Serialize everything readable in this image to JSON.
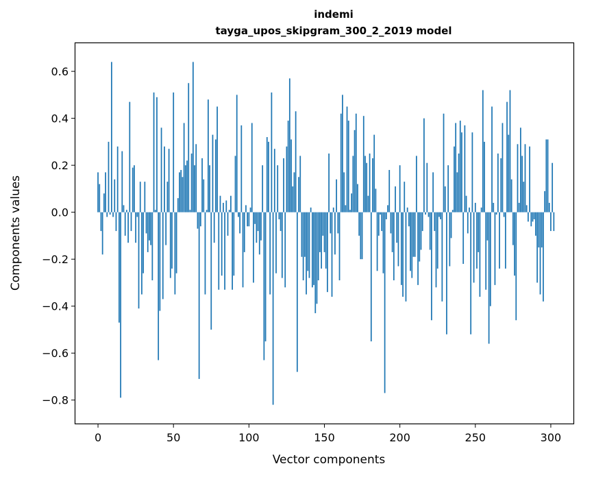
{
  "chart_data": {
    "type": "bar",
    "title": "indemi",
    "subtitle": "tayga_upos_skipgram_300_2_2019 model",
    "xlabel": "Vector components",
    "ylabel": "Components values",
    "xlim": [
      -15,
      315
    ],
    "ylim": [
      -0.9,
      0.72
    ],
    "xticks": [
      0,
      50,
      100,
      150,
      200,
      250,
      300
    ],
    "yticks": [
      -0.8,
      -0.6,
      -0.4,
      -0.2,
      0.0,
      0.2,
      0.4,
      0.6
    ],
    "ytick_labels": [
      "−0.8",
      "−0.6",
      "−0.4",
      "−0.2",
      "0.0",
      "0.2",
      "0.4",
      "0.6"
    ],
    "bar_color": "#1f77b4",
    "grid": false,
    "values": [
      0.17,
      0.12,
      -0.08,
      -0.18,
      0.08,
      0.17,
      -0.02,
      0.3,
      -0.01,
      0.64,
      -0.02,
      0.14,
      -0.08,
      0.28,
      -0.47,
      -0.79,
      0.26,
      0.03,
      -0.1,
      0.01,
      -0.13,
      0.47,
      -0.08,
      0.19,
      0.2,
      -0.13,
      -0.02,
      -0.41,
      0.13,
      -0.35,
      -0.26,
      0.13,
      -0.09,
      -0.17,
      -0.12,
      -0.14,
      -0.29,
      0.51,
      0.01,
      0.49,
      -0.63,
      -0.42,
      0.36,
      -0.37,
      0.28,
      -0.14,
      0.13,
      0.27,
      -0.28,
      -0.24,
      0.51,
      -0.35,
      -0.26,
      0.06,
      0.17,
      0.18,
      0.15,
      0.38,
      0.2,
      0.22,
      0.55,
      0.01,
      0.25,
      0.64,
      0.2,
      0.29,
      -0.07,
      -0.71,
      -0.06,
      0.23,
      0.14,
      -0.35,
      0.01,
      0.48,
      0.2,
      -0.5,
      0.33,
      -0.13,
      0.31,
      0.45,
      -0.33,
      0.07,
      -0.27,
      0.04,
      -0.33,
      0.05,
      -0.1,
      0.01,
      0.07,
      -0.33,
      -0.27,
      0.24,
      0.5,
      -0.02,
      -0.09,
      0.37,
      -0.32,
      -0.17,
      0.03,
      -0.06,
      -0.06,
      0.02,
      0.38,
      -0.3,
      -0.05,
      -0.13,
      -0.08,
      -0.18,
      -0.12,
      0.2,
      -0.63,
      -0.55,
      0.32,
      0.3,
      -0.35,
      0.51,
      -0.82,
      0.27,
      -0.26,
      0.2,
      -0.03,
      -0.08,
      -0.28,
      0.23,
      -0.32,
      0.28,
      0.39,
      0.57,
      0.31,
      0.11,
      0.17,
      0.43,
      -0.68,
      0.15,
      0.24,
      -0.19,
      -0.29,
      -0.19,
      -0.35,
      -0.25,
      -0.28,
      0.02,
      -0.32,
      -0.31,
      -0.43,
      -0.39,
      -0.29,
      -0.17,
      -0.24,
      -0.1,
      -0.17,
      -0.24,
      -0.34,
      0.25,
      -0.09,
      -0.36,
      0.02,
      -0.18,
      0.14,
      -0.09,
      -0.29,
      0.42,
      0.5,
      0.17,
      0.03,
      0.45,
      0.39,
      0.01,
      0.08,
      0.24,
      0.35,
      0.42,
      0.12,
      -0.1,
      -0.2,
      -0.2,
      0.41,
      0.24,
      0.21,
      0.07,
      0.25,
      -0.55,
      0.23,
      0.33,
      0.1,
      -0.25,
      -0.1,
      -0.01,
      -0.08,
      -0.26,
      -0.77,
      -0.03,
      0.03,
      0.18,
      -0.09,
      -0.17,
      -0.29,
      0.11,
      -0.13,
      -0.23,
      0.2,
      -0.31,
      -0.36,
      0.13,
      -0.38,
      0.02,
      -0.06,
      -0.25,
      -0.28,
      -0.19,
      -0.19,
      0.24,
      -0.31,
      -0.21,
      -0.16,
      -0.08,
      0.4,
      -0.01,
      0.21,
      -0.02,
      -0.16,
      -0.46,
      0.17,
      -0.08,
      -0.32,
      -0.24,
      -0.02,
      -0.03,
      -0.38,
      0.42,
      0.11,
      -0.52,
      0.2,
      -0.23,
      -0.11,
      0.01,
      0.28,
      0.38,
      0.17,
      0.25,
      0.39,
      0.34,
      -0.22,
      0.37,
      0.07,
      -0.09,
      0.02,
      -0.52,
      0.34,
      -0.3,
      0.04,
      -0.24,
      -0.17,
      -0.36,
      0.02,
      0.52,
      0.3,
      -0.33,
      -0.12,
      -0.56,
      -0.4,
      0.45,
      0.04,
      -0.31,
      -0.01,
      0.25,
      -0.24,
      0.23,
      0.38,
      -0.02,
      -0.24,
      0.47,
      0.33,
      0.52,
      0.14,
      -0.14,
      -0.27,
      -0.46,
      0.29,
      0.04,
      0.36,
      0.24,
      0.13,
      0.29,
      0.03,
      -0.04,
      0.28,
      -0.06,
      -0.04,
      -0.03,
      -0.1,
      -0.3,
      -0.15,
      -0.35,
      -0.15,
      -0.38,
      0.09,
      0.31,
      0.31,
      0.04,
      -0.08,
      0.21,
      -0.08
    ]
  }
}
